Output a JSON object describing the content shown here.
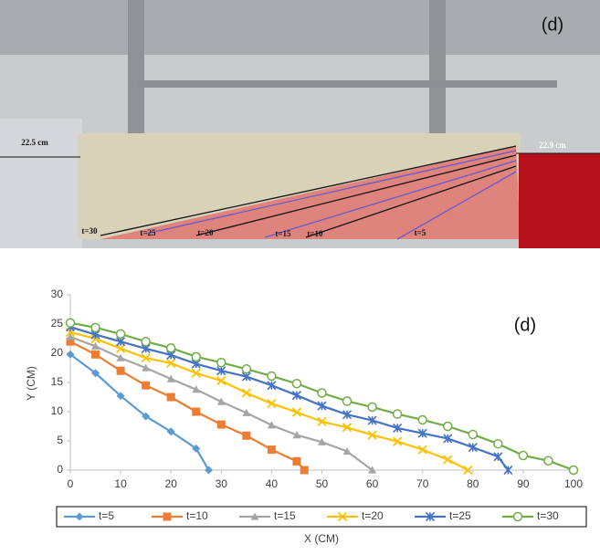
{
  "photo": {
    "panel_label": "(d)",
    "left_height": "22.5 cm",
    "right_height": "22.9 cm",
    "curve_labels": [
      "t=30",
      "t=25",
      "t=20",
      "t=15",
      "t=10",
      "t=5"
    ]
  },
  "chart_data": {
    "type": "line",
    "panel_label": "(d)",
    "x_label": "X (CM)",
    "y_label": "Y (CM)",
    "xlim": [
      0,
      100
    ],
    "xticks": [
      0,
      10,
      20,
      30,
      40,
      50,
      60,
      70,
      80,
      90,
      100
    ],
    "ylim": [
      0,
      30
    ],
    "yticks": [
      0,
      5,
      10,
      15,
      20,
      25,
      30
    ],
    "grid": false,
    "legend": "bottom",
    "series": [
      {
        "name": "t=5",
        "color": "#5b9bd5",
        "marker": "diamond",
        "x": [
          0,
          5,
          10,
          15,
          20,
          25,
          27.5
        ],
        "values": [
          19.8,
          16.6,
          12.7,
          9.2,
          6.6,
          3.7,
          0
        ]
      },
      {
        "name": "t=10",
        "color": "#ed7d31",
        "marker": "square",
        "x": [
          0,
          5,
          10,
          15,
          20,
          25,
          30,
          35,
          40,
          45,
          46.5
        ],
        "values": [
          22,
          19.8,
          17,
          14.5,
          12.5,
          10,
          7.8,
          5.9,
          3.5,
          1.5,
          0
        ]
      },
      {
        "name": "t=15",
        "color": "#a5a5a5",
        "marker": "triangle",
        "x": [
          0,
          5,
          10,
          15,
          20,
          25,
          30,
          35,
          40,
          45,
          50,
          55,
          60
        ],
        "values": [
          22.8,
          21.2,
          19.2,
          17.5,
          15.6,
          13.8,
          11.7,
          9.8,
          7.7,
          6,
          4.8,
          3.2,
          0
        ]
      },
      {
        "name": "t=20",
        "color": "#ffc000",
        "marker": "x",
        "x": [
          0,
          5,
          10,
          15,
          20,
          25,
          30,
          35,
          40,
          45,
          50,
          55,
          60,
          65,
          70,
          75,
          79
        ],
        "values": [
          23.6,
          22.5,
          20.8,
          19.2,
          18.3,
          16.6,
          15.3,
          13.2,
          11.4,
          9.9,
          8.3,
          7.3,
          6,
          4.9,
          3.5,
          1.8,
          0
        ]
      },
      {
        "name": "t=25",
        "color": "#4472c4",
        "marker": "star",
        "x": [
          0,
          5,
          10,
          15,
          20,
          25,
          30,
          35,
          40,
          45,
          50,
          55,
          60,
          65,
          70,
          75,
          80,
          85,
          87
        ],
        "values": [
          24.5,
          23.2,
          22,
          20.8,
          19.7,
          18.2,
          17,
          16,
          14.5,
          12.8,
          11,
          9.5,
          8.5,
          7.2,
          6.3,
          5.4,
          3.9,
          2.3,
          0
        ]
      },
      {
        "name": "t=30",
        "color": "#70ad47",
        "marker": "circle",
        "x": [
          0,
          5,
          10,
          15,
          20,
          25,
          30,
          35,
          40,
          45,
          50,
          55,
          60,
          65,
          70,
          75,
          80,
          85,
          90,
          95,
          100
        ],
        "values": [
          25.2,
          24.4,
          23.3,
          22,
          20.9,
          19.4,
          18.4,
          17.3,
          16.1,
          14.8,
          13.2,
          11.8,
          10.8,
          9.6,
          8.6,
          7.5,
          6.1,
          4.5,
          2.5,
          1.6,
          0
        ]
      }
    ]
  }
}
